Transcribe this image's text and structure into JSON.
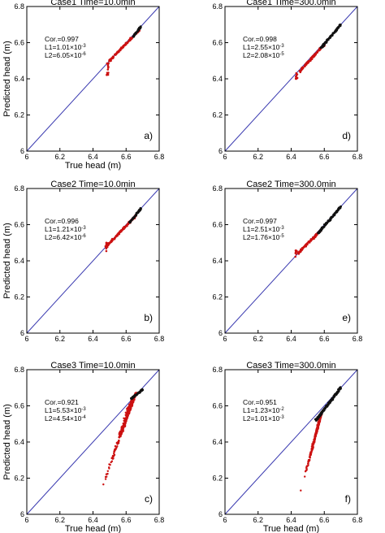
{
  "figure": {
    "colors": {
      "diagonal": "#3a3ab0",
      "series_red": "#cc1111",
      "series_black": "#111111",
      "frame": "#000000"
    }
  },
  "chart_data": [
    {
      "type": "scatter",
      "title": "Case1 Time=10.0min",
      "xlabel": "True head (m)",
      "ylabel": "Predicted head (m)",
      "xlim": [
        6,
        6.8
      ],
      "ylim": [
        6,
        6.8
      ],
      "xticks": [
        "6",
        "6.2",
        "6.4",
        "6.6",
        "6.8"
      ],
      "yticks": [
        "6",
        "6.2",
        "6.4",
        "6.6",
        "6.8"
      ],
      "stats": [
        "Cor.=0.997",
        "L1=1.01×10",
        "L2=6.05×10"
      ],
      "stats_exp": [
        "",
        "-3",
        "-6"
      ],
      "panel_label": "a)",
      "diagonal": true,
      "dark_cluster": {
        "x0": 6.64,
        "y0": 6.63,
        "x1": 6.69,
        "y1": 6.69,
        "n": 40,
        "spread": 0.005
      },
      "red_band": {
        "x0": 6.5,
        "y0": 6.5,
        "x1": 6.68,
        "y1": 6.67,
        "n": 120,
        "spread": 0.006
      },
      "tail": {
        "x": 6.49,
        "y0": 6.42,
        "y1": 6.49,
        "n": 12,
        "spread": 0.01
      }
    },
    {
      "type": "scatter",
      "title": "Case1 Time=300.0min",
      "xlabel": "",
      "ylabel": "",
      "xlim": [
        6,
        6.8
      ],
      "ylim": [
        6,
        6.8
      ],
      "xticks": [
        "6",
        "6.2",
        "6.4",
        "6.6",
        "6.8"
      ],
      "yticks": [
        "6",
        "6.2",
        "6.4",
        "6.6",
        "6.8"
      ],
      "stats": [
        "Cor.=0.998",
        "L1=2.55×10",
        "L2=2.08×10"
      ],
      "stats_exp": [
        "",
        "-3",
        "-5"
      ],
      "panel_label": "d)",
      "diagonal": true,
      "dark_cluster": {
        "x0": 6.58,
        "y0": 6.57,
        "x1": 6.7,
        "y1": 6.7,
        "n": 90,
        "spread": 0.006
      },
      "red_band": {
        "x0": 6.45,
        "y0": 6.44,
        "x1": 6.6,
        "y1": 6.59,
        "n": 110,
        "spread": 0.007
      },
      "tail": {
        "x": 6.43,
        "y0": 6.4,
        "y1": 6.44,
        "n": 10,
        "spread": 0.01
      }
    },
    {
      "type": "scatter",
      "title": "Case2 Time=10.0min",
      "xlabel": "",
      "ylabel": "Predicted head (m)",
      "xlim": [
        6,
        6.8
      ],
      "ylim": [
        6,
        6.8
      ],
      "xticks": [
        "6",
        "6.2",
        "6.4",
        "6.6",
        "6.8"
      ],
      "yticks": [
        "6",
        "6.2",
        "6.4",
        "6.6",
        "6.8"
      ],
      "stats": [
        "Cor.=0.996",
        "L1=1.21×10",
        "L2=6.42×10"
      ],
      "stats_exp": [
        "",
        "-3",
        "-6"
      ],
      "panel_label": "b)",
      "diagonal": true,
      "dark_cluster": {
        "x0": 6.62,
        "y0": 6.61,
        "x1": 6.69,
        "y1": 6.69,
        "n": 45,
        "spread": 0.005
      },
      "red_band": {
        "x0": 6.48,
        "y0": 6.48,
        "x1": 6.66,
        "y1": 6.65,
        "n": 120,
        "spread": 0.006
      },
      "tail": {
        "x": 6.48,
        "y0": 6.45,
        "y1": 6.5,
        "n": 10,
        "spread": 0.008
      }
    },
    {
      "type": "scatter",
      "title": "Case2 Time=300.0min",
      "xlabel": "",
      "ylabel": "",
      "xlim": [
        6,
        6.8
      ],
      "ylim": [
        6,
        6.8
      ],
      "xticks": [
        "6",
        "6.2",
        "6.4",
        "6.6",
        "6.8"
      ],
      "yticks": [
        "6",
        "6.2",
        "6.4",
        "6.6",
        "6.8"
      ],
      "stats": [
        "Cor.=0.997",
        "L1=2.51×10",
        "L2=1.76×10"
      ],
      "stats_exp": [
        "",
        "-3",
        "-5"
      ],
      "panel_label": "e)",
      "diagonal": true,
      "dark_cluster": {
        "x0": 6.56,
        "y0": 6.55,
        "x1": 6.7,
        "y1": 6.7,
        "n": 100,
        "spread": 0.006
      },
      "red_band": {
        "x0": 6.44,
        "y0": 6.44,
        "x1": 6.58,
        "y1": 6.57,
        "n": 100,
        "spread": 0.007
      },
      "tail": {
        "x": 6.43,
        "y0": 6.42,
        "y1": 6.46,
        "n": 10,
        "spread": 0.009
      }
    },
    {
      "type": "scatter",
      "title": "Case3 Time=10.0min",
      "xlabel": "True head (m)",
      "ylabel": "Predicted head (m)",
      "xlim": [
        6,
        6.8
      ],
      "ylim": [
        6,
        6.8
      ],
      "xticks": [
        "6",
        "6.2",
        "6.4",
        "6.6",
        "6.8"
      ],
      "yticks": [
        "6",
        "6.2",
        "6.4",
        "6.6",
        "6.8"
      ],
      "stats": [
        "Cor.=0.921",
        "L1=5.53×10",
        "L2=4.54×10"
      ],
      "stats_exp": [
        "",
        "-3",
        "-4"
      ],
      "panel_label": "c)",
      "diagonal": true,
      "dark_cluster": {
        "x0": 6.63,
        "y0": 6.64,
        "x1": 6.7,
        "y1": 6.69,
        "n": 60,
        "spread": 0.005
      },
      "fan": {
        "top_x": 6.66,
        "top_y": 6.67,
        "bottom_x0": 6.42,
        "bottom_x1": 6.6,
        "bottom_y0": 6.05,
        "bottom_y1": 6.58,
        "n": 420
      }
    },
    {
      "type": "scatter",
      "title": "Case3 Time=300.0min",
      "xlabel": "True head (m)",
      "ylabel": "",
      "xlim": [
        6,
        6.8
      ],
      "ylim": [
        6,
        6.8
      ],
      "xticks": [
        "6",
        "6.2",
        "6.4",
        "6.6",
        "6.8"
      ],
      "yticks": [
        "6",
        "6.2",
        "6.4",
        "6.6",
        "6.8"
      ],
      "stats": [
        "Cor.=0.951",
        "L1=1.23×10",
        "L2=1.01×10"
      ],
      "stats_exp": [
        "",
        "-2",
        "-3"
      ],
      "panel_label": "f)",
      "diagonal": true,
      "dark_cluster": {
        "x0": 6.55,
        "y0": 6.52,
        "x1": 6.7,
        "y1": 6.7,
        "n": 160,
        "spread": 0.007
      },
      "fan": {
        "top_x": 6.58,
        "top_y": 6.55,
        "bottom_x0": 6.45,
        "bottom_x1": 6.55,
        "bottom_y0": 6.1,
        "bottom_y1": 6.45,
        "n": 380
      }
    }
  ]
}
